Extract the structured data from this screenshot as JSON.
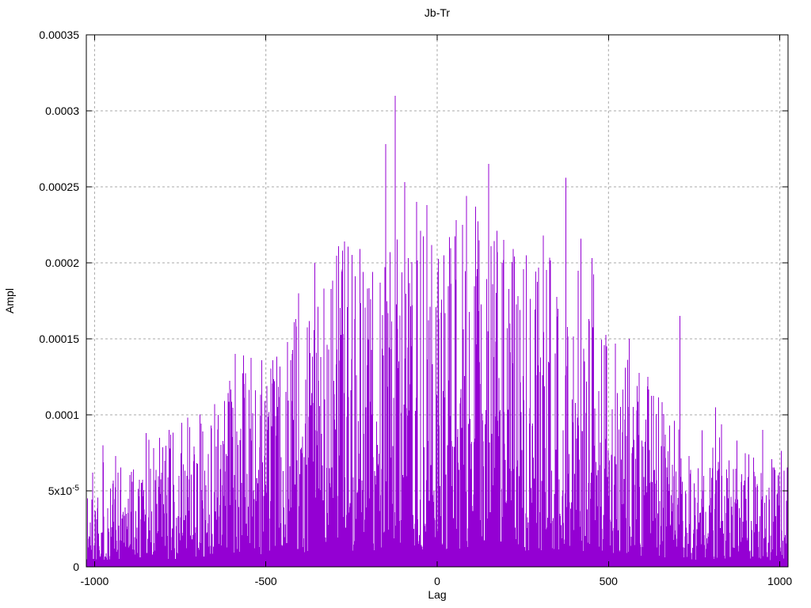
{
  "chart_data": {
    "type": "impulse",
    "title": "Jb-Tr",
    "xlabel": "Lag",
    "ylabel": "Ampl",
    "xlim": [
      -1024,
      1024
    ],
    "ylim": [
      0,
      0.00035
    ],
    "grid": true,
    "legend": "none",
    "impulse_color": "#9400d3",
    "grid_color": "#a9a9a9",
    "border_color": "#000000",
    "background_color": "#ffffff",
    "xticks": [
      {
        "value": -1000,
        "label": "-1000"
      },
      {
        "value": -500,
        "label": "-500"
      },
      {
        "value": 0,
        "label": "0"
      },
      {
        "value": 500,
        "label": "500"
      },
      {
        "value": 1000,
        "label": "1000"
      }
    ],
    "yticks": [
      {
        "value": 0,
        "label": "0"
      },
      {
        "value": 5e-05,
        "label": "5x10",
        "exp": "-5"
      },
      {
        "value": 0.0001,
        "label": "0.0001"
      },
      {
        "value": 0.00015,
        "label": "0.00015"
      },
      {
        "value": 0.0002,
        "label": "0.0002"
      },
      {
        "value": 0.00025,
        "label": "0.00025"
      },
      {
        "value": 0.0003,
        "label": "0.0003"
      },
      {
        "value": 0.00035,
        "label": "0.00035"
      }
    ],
    "n_impulses": 2047,
    "seed": 1337,
    "noise_distribution": {
      "floor_fraction": 0.05,
      "power": 2.4
    },
    "amplitude_envelope": [
      [
        -1024,
        7.2e-05
      ],
      [
        -950,
        7.8e-05
      ],
      [
        -900,
        8e-05
      ],
      [
        -850,
        8.5e-05
      ],
      [
        -800,
        9e-05
      ],
      [
        -750,
        9.5e-05
      ],
      [
        -700,
        0.000102
      ],
      [
        -650,
        0.000108
      ],
      [
        -600,
        0.00013
      ],
      [
        -550,
        0.000138
      ],
      [
        -500,
        0.000136
      ],
      [
        -450,
        0.000155
      ],
      [
        -400,
        0.00018
      ],
      [
        -350,
        0.000195
      ],
      [
        -300,
        0.000208
      ],
      [
        -250,
        0.000212
      ],
      [
        -200,
        0.000207
      ],
      [
        -150,
        0.000218
      ],
      [
        -100,
        0.000228
      ],
      [
        -50,
        0.000225
      ],
      [
        0,
        0.000213
      ],
      [
        50,
        0.000222
      ],
      [
        100,
        0.000232
      ],
      [
        150,
        0.000222
      ],
      [
        200,
        0.000218
      ],
      [
        250,
        0.000207
      ],
      [
        300,
        0.000213
      ],
      [
        350,
        0.00021
      ],
      [
        400,
        0.000212
      ],
      [
        450,
        0.0002
      ],
      [
        500,
        0.000158
      ],
      [
        550,
        0.000148
      ],
      [
        600,
        0.000128
      ],
      [
        650,
        0.000112
      ],
      [
        700,
        0.0001
      ],
      [
        750,
        9.2e-05
      ],
      [
        800,
        0.000102
      ],
      [
        850,
        9e-05
      ],
      [
        900,
        8.2e-05
      ],
      [
        950,
        7.8e-05
      ],
      [
        1000,
        7.8e-05
      ],
      [
        1024,
        7.8e-05
      ]
    ],
    "notable_peaks": [
      [
        -975,
        8e-05
      ],
      [
        -850,
        8.8e-05
      ],
      [
        -722,
        9.2e-05
      ],
      [
        -650,
        0.000107
      ],
      [
        -590,
        0.00014
      ],
      [
        -565,
        0.000139
      ],
      [
        -512,
        0.000136
      ],
      [
        -480,
        0.000136
      ],
      [
        -405,
        0.00018
      ],
      [
        -357,
        0.0002
      ],
      [
        -330,
        0.000183
      ],
      [
        -288,
        0.000211
      ],
      [
        -270,
        0.000214
      ],
      [
        -225,
        0.000209
      ],
      [
        -188,
        0.000194
      ],
      [
        -150,
        0.000278
      ],
      [
        -123,
        0.00031
      ],
      [
        -95,
        0.000253
      ],
      [
        -60,
        0.00024
      ],
      [
        -30,
        0.000238
      ],
      [
        20,
        0.000205
      ],
      [
        55,
        0.000228
      ],
      [
        85,
        0.000244
      ],
      [
        112,
        0.000237
      ],
      [
        150,
        0.000265
      ],
      [
        175,
        0.000221
      ],
      [
        222,
        0.000209
      ],
      [
        260,
        0.000205
      ],
      [
        310,
        0.000218
      ],
      [
        376,
        0.000256
      ],
      [
        420,
        0.000216
      ],
      [
        452,
        0.000203
      ],
      [
        520,
        0.000147
      ],
      [
        560,
        0.00015
      ],
      [
        615,
        0.000125
      ],
      [
        708,
        0.000165
      ],
      [
        812,
        0.000105
      ],
      [
        950,
        9e-05
      ]
    ]
  }
}
